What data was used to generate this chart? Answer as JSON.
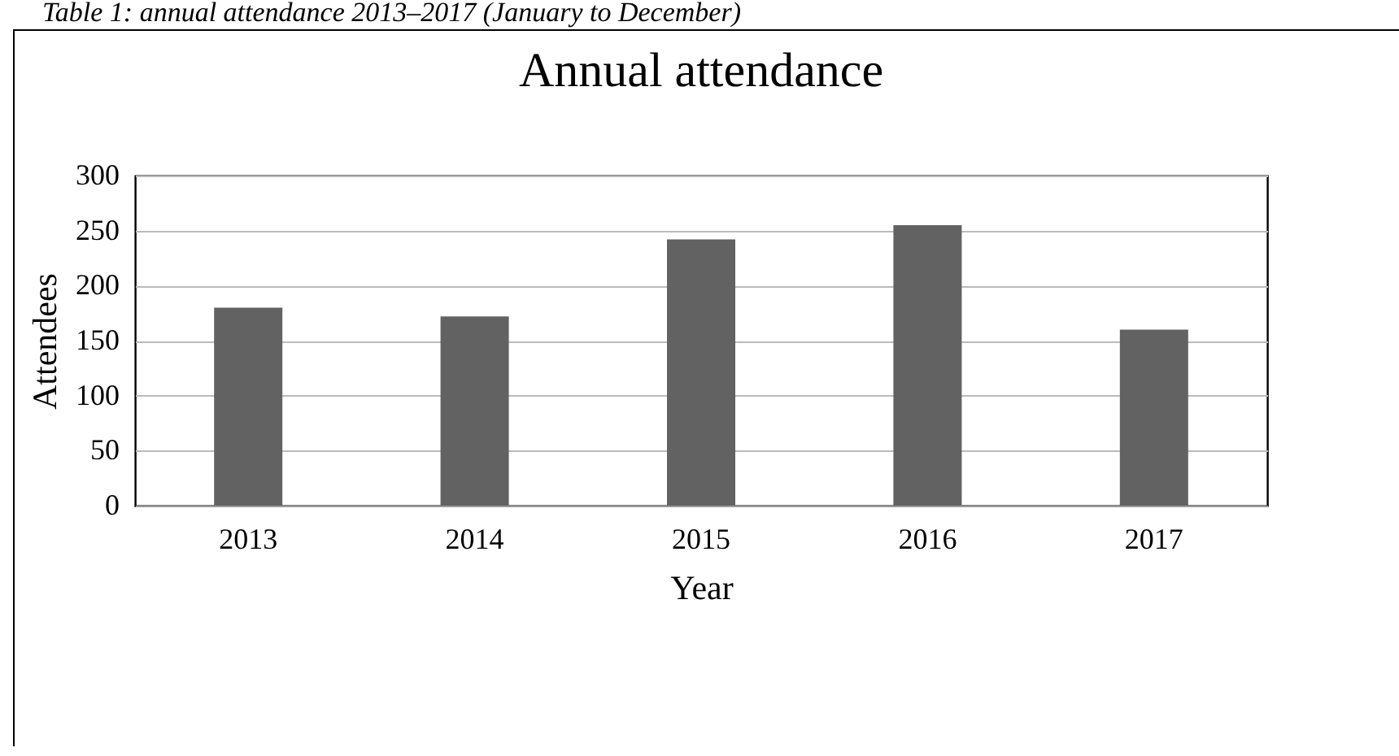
{
  "chart_data": {
    "type": "bar",
    "title": "Annual attendance",
    "xlabel": "Year",
    "ylabel": "Attendees",
    "annotations": [
      "Table 1: annual attendance 2013–2017 (January to December)"
    ],
    "categories": [
      "2013",
      "2014",
      "2015",
      "2016",
      "2017"
    ],
    "values": [
      180,
      172,
      242,
      255,
      160
    ],
    "color": "#626262",
    "ylim": [
      0,
      300
    ],
    "yticks": [
      0,
      50,
      100,
      150,
      200,
      250,
      300
    ],
    "grid": "y"
  }
}
